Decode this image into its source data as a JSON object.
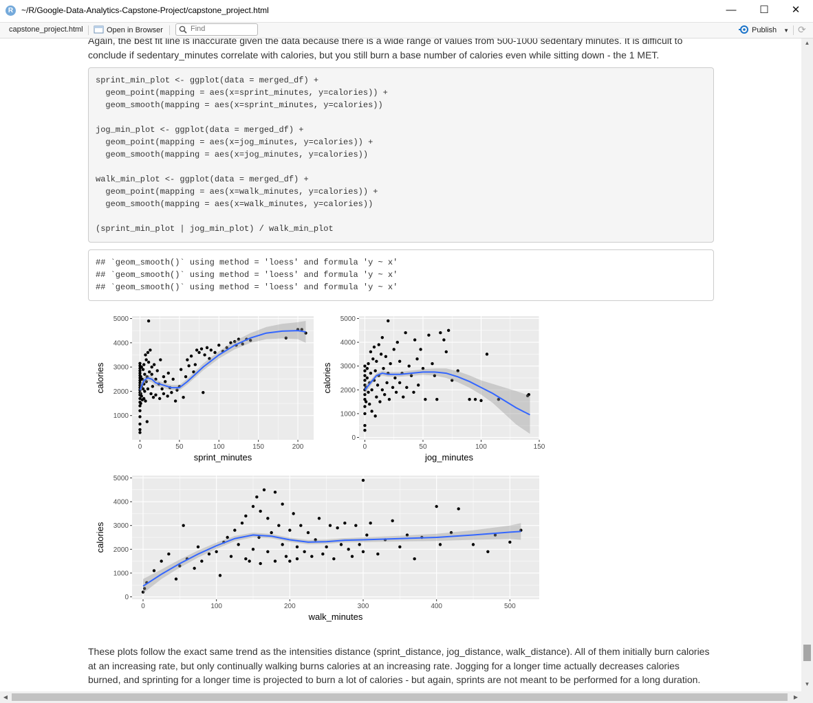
{
  "window": {
    "title": "~/R/Google-Data-Analytics-Capstone-Project/capstone_project.html",
    "app_icon_letter": "R",
    "minimize": "—",
    "maximize": "☐",
    "close": "✕"
  },
  "toolbar": {
    "tab_label": "capstone_project.html",
    "open_in_browser": "Open in Browser",
    "find_placeholder": "Find",
    "publish_label": "Publish"
  },
  "document": {
    "top_paragraph": [
      "Again, the best fit line is inaccurate given the data because there is a wide range of values from 500-1000 sedentary minutes. It is difficult to",
      "conclude if sedentary_minutes correlate with calories, but you still burn a base number of calories even while sitting down - the 1 MET."
    ],
    "code_lines": [
      "sprint_min_plot <- ggplot(data = merged_df) +",
      "  geom_point(mapping = aes(x=sprint_minutes, y=calories)) +",
      "  geom_smooth(mapping = aes(x=sprint_minutes, y=calories))",
      "",
      "jog_min_plot <- ggplot(data = merged_df) +",
      "  geom_point(mapping = aes(x=jog_minutes, y=calories)) +",
      "  geom_smooth(mapping = aes(x=jog_minutes, y=calories))",
      "",
      "walk_min_plot <- ggplot(data = merged_df) +",
      "  geom_point(mapping = aes(x=walk_minutes, y=calories)) +",
      "  geom_smooth(mapping = aes(x=walk_minutes, y=calories))",
      "",
      "(sprint_min_plot | jog_min_plot) / walk_min_plot"
    ],
    "output_lines": [
      "## `geom_smooth()` using method = 'loess' and formula 'y ~ x'",
      "## `geom_smooth()` using method = 'loess' and formula 'y ~ x'",
      "## `geom_smooth()` using method = 'loess' and formula 'y ~ x'"
    ],
    "bottom_paragraph": [
      "These plots follow the exact same trend as the intensities distance (sprint_distance, jog_distance, walk_distance). All of them initially burn calories",
      "at an increasing rate, but only continually walking burns calories at an increasing rate. Jogging for a longer time actually decreases calories",
      "burned, and sprinting for a longer time is projected to burn a lot of calories - but again, sprints are not meant to be performed for a long duration."
    ]
  },
  "colors": {
    "panel_bg": "#ebebeb",
    "grid": "#ffffff",
    "point": "#000000",
    "smooth_line": "#3366ff",
    "ribbon": "#999999",
    "publish_accent": "#1a73c9"
  },
  "chart_data": [
    {
      "type": "scatter",
      "xlabel": "sprint_minutes",
      "ylabel": "calories",
      "xlim": [
        -10,
        220
      ],
      "ylim": [
        0,
        5100
      ],
      "xticks": [
        0,
        50,
        100,
        150,
        200
      ],
      "yticks": [
        1000,
        2000,
        3000,
        4000,
        5000
      ],
      "smooth": {
        "x": [
          0,
          5,
          10,
          15,
          20,
          25,
          30,
          40,
          50,
          60,
          70,
          80,
          100,
          120,
          140,
          160,
          180,
          200,
          210
        ],
        "y": [
          2050,
          2450,
          2550,
          2500,
          2350,
          2300,
          2250,
          2150,
          2150,
          2400,
          2700,
          3000,
          3500,
          3900,
          4200,
          4400,
          4480,
          4500,
          4450
        ],
        "se": [
          250,
          150,
          120,
          130,
          130,
          120,
          110,
          110,
          110,
          120,
          130,
          140,
          150,
          170,
          200,
          250,
          300,
          350,
          450
        ]
      },
      "points": [
        [
          0,
          300
        ],
        [
          0,
          420
        ],
        [
          0,
          650
        ],
        [
          0,
          950
        ],
        [
          0,
          1200
        ],
        [
          0,
          1400
        ],
        [
          0,
          1550
        ],
        [
          0,
          1700
        ],
        [
          0,
          1850
        ],
        [
          0,
          1950
        ],
        [
          0,
          2050
        ],
        [
          0,
          2150
        ],
        [
          0,
          2250
        ],
        [
          0,
          2350
        ],
        [
          0,
          2450
        ],
        [
          0,
          2550
        ],
        [
          0,
          2650
        ],
        [
          0,
          2750
        ],
        [
          0,
          2850
        ],
        [
          0,
          2950
        ],
        [
          0,
          3050
        ],
        [
          0,
          3150
        ],
        [
          1,
          1500
        ],
        [
          1,
          1900
        ],
        [
          1,
          2600
        ],
        [
          2,
          1800
        ],
        [
          2,
          2200
        ],
        [
          2,
          3000
        ],
        [
          3,
          1650
        ],
        [
          3,
          2500
        ],
        [
          4,
          2100
        ],
        [
          4,
          2900
        ],
        [
          5,
          1700
        ],
        [
          5,
          2300
        ],
        [
          5,
          3100
        ],
        [
          6,
          2000
        ],
        [
          6,
          2700
        ],
        [
          7,
          1600
        ],
        [
          7,
          3500
        ],
        [
          8,
          2400
        ],
        [
          8,
          3300
        ],
        [
          9,
          750
        ],
        [
          9,
          2600
        ],
        [
          10,
          2100
        ],
        [
          10,
          3600
        ],
        [
          11,
          4900
        ],
        [
          11,
          3200
        ],
        [
          12,
          2800
        ],
        [
          13,
          3700
        ],
        [
          14,
          1900
        ],
        [
          15,
          2700
        ],
        [
          15,
          3000
        ],
        [
          16,
          2200
        ],
        [
          17,
          1750
        ],
        [
          18,
          3100
        ],
        [
          20,
          2500
        ],
        [
          20,
          1850
        ],
        [
          22,
          2850
        ],
        [
          24,
          2300
        ],
        [
          25,
          1700
        ],
        [
          26,
          3300
        ],
        [
          28,
          2100
        ],
        [
          30,
          2600
        ],
        [
          30,
          1900
        ],
        [
          32,
          2400
        ],
        [
          35,
          1800
        ],
        [
          36,
          2750
        ],
        [
          38,
          2150
        ],
        [
          40,
          1950
        ],
        [
          42,
          2500
        ],
        [
          45,
          1600
        ],
        [
          47,
          2050
        ],
        [
          50,
          2200
        ],
        [
          52,
          2900
        ],
        [
          55,
          1750
        ],
        [
          58,
          2600
        ],
        [
          60,
          3300
        ],
        [
          62,
          3050
        ],
        [
          65,
          3450
        ],
        [
          68,
          2800
        ],
        [
          70,
          3100
        ],
        [
          72,
          3700
        ],
        [
          75,
          3600
        ],
        [
          78,
          3750
        ],
        [
          80,
          1950
        ],
        [
          82,
          3500
        ],
        [
          85,
          3800
        ],
        [
          88,
          3350
        ],
        [
          90,
          3700
        ],
        [
          95,
          3600
        ],
        [
          100,
          3900
        ],
        [
          105,
          3650
        ],
        [
          110,
          3800
        ],
        [
          115,
          4000
        ],
        [
          120,
          4050
        ],
        [
          122,
          3900
        ],
        [
          125,
          4150
        ],
        [
          130,
          3950
        ],
        [
          135,
          4150
        ],
        [
          140,
          4100
        ],
        [
          185,
          4200
        ],
        [
          200,
          4550
        ],
        [
          205,
          4550
        ],
        [
          210,
          4400
        ]
      ]
    },
    {
      "type": "scatter",
      "xlabel": "jog_minutes",
      "ylabel": "calories",
      "xlim": [
        -5,
        150
      ],
      "ylim": [
        -100,
        5100
      ],
      "xticks": [
        0,
        50,
        100,
        150
      ],
      "yticks": [
        0,
        1000,
        2000,
        3000,
        4000,
        5000
      ],
      "smooth": {
        "x": [
          0,
          5,
          10,
          15,
          20,
          30,
          40,
          50,
          60,
          70,
          80,
          90,
          100,
          110,
          120,
          130,
          142
        ],
        "y": [
          2000,
          2300,
          2600,
          2700,
          2650,
          2650,
          2700,
          2750,
          2750,
          2700,
          2550,
          2350,
          2100,
          1850,
          1550,
          1250,
          950
        ],
        "se": [
          200,
          120,
          100,
          100,
          100,
          100,
          110,
          120,
          150,
          200,
          230,
          260,
          300,
          400,
          550,
          700,
          800
        ]
      },
      "points": [
        [
          0,
          300
        ],
        [
          0,
          500
        ],
        [
          0,
          1000
        ],
        [
          0,
          1300
        ],
        [
          0,
          1600
        ],
        [
          0,
          1800
        ],
        [
          0,
          2000
        ],
        [
          0,
          2200
        ],
        [
          0,
          2400
        ],
        [
          0,
          2600
        ],
        [
          0,
          2800
        ],
        [
          0,
          3000
        ],
        [
          1,
          1500
        ],
        [
          1,
          2100
        ],
        [
          2,
          2500
        ],
        [
          2,
          2900
        ],
        [
          3,
          1900
        ],
        [
          3,
          3100
        ],
        [
          4,
          1400
        ],
        [
          4,
          2300
        ],
        [
          5,
          2700
        ],
        [
          5,
          3600
        ],
        [
          6,
          1100
        ],
        [
          6,
          2000
        ],
        [
          7,
          3300
        ],
        [
          8,
          2400
        ],
        [
          8,
          3800
        ],
        [
          9,
          900
        ],
        [
          9,
          2800
        ],
        [
          10,
          1700
        ],
        [
          10,
          3200
        ],
        [
          11,
          2200
        ],
        [
          12,
          3900
        ],
        [
          12,
          2600
        ],
        [
          13,
          1500
        ],
        [
          14,
          3500
        ],
        [
          15,
          2000
        ],
        [
          15,
          4200
        ],
        [
          16,
          2900
        ],
        [
          17,
          1800
        ],
        [
          18,
          3400
        ],
        [
          19,
          2300
        ],
        [
          20,
          4900
        ],
        [
          20,
          2700
        ],
        [
          21,
          1600
        ],
        [
          22,
          3100
        ],
        [
          24,
          2100
        ],
        [
          25,
          3700
        ],
        [
          26,
          2500
        ],
        [
          27,
          1900
        ],
        [
          28,
          4000
        ],
        [
          30,
          2300
        ],
        [
          30,
          3200
        ],
        [
          32,
          2700
        ],
        [
          33,
          1700
        ],
        [
          35,
          4400
        ],
        [
          36,
          2100
        ],
        [
          38,
          3000
        ],
        [
          40,
          2600
        ],
        [
          42,
          1900
        ],
        [
          43,
          4100
        ],
        [
          45,
          3300
        ],
        [
          46,
          2200
        ],
        [
          48,
          3700
        ],
        [
          50,
          2900
        ],
        [
          52,
          1600
        ],
        [
          55,
          4300
        ],
        [
          58,
          3100
        ],
        [
          60,
          2600
        ],
        [
          62,
          1600
        ],
        [
          65,
          4400
        ],
        [
          68,
          4100
        ],
        [
          70,
          3600
        ],
        [
          72,
          4500
        ],
        [
          75,
          2400
        ],
        [
          80,
          2800
        ],
        [
          90,
          1600
        ],
        [
          95,
          1600
        ],
        [
          100,
          1550
        ],
        [
          105,
          3500
        ],
        [
          115,
          1600
        ],
        [
          140,
          1750
        ],
        [
          141,
          1800
        ]
      ]
    },
    {
      "type": "scatter",
      "xlabel": "walk_minutes",
      "ylabel": "calories",
      "xlim": [
        -15,
        540
      ],
      "ylim": [
        -100,
        5100
      ],
      "xticks": [
        0,
        100,
        200,
        300,
        400,
        500
      ],
      "yticks": [
        0,
        1000,
        2000,
        3000,
        4000,
        5000
      ],
      "smooth": {
        "x": [
          0,
          25,
          50,
          75,
          100,
          125,
          150,
          175,
          200,
          225,
          250,
          275,
          300,
          350,
          400,
          450,
          500,
          515
        ],
        "y": [
          450,
          950,
          1400,
          1800,
          2150,
          2450,
          2600,
          2550,
          2400,
          2300,
          2320,
          2380,
          2400,
          2450,
          2500,
          2600,
          2720,
          2750
        ],
        "se": [
          300,
          200,
          170,
          150,
          130,
          110,
          100,
          90,
          90,
          90,
          90,
          90,
          100,
          120,
          150,
          200,
          280,
          350
        ]
      },
      "points": [
        [
          0,
          200
        ],
        [
          2,
          350
        ],
        [
          5,
          600
        ],
        [
          15,
          1100
        ],
        [
          25,
          1500
        ],
        [
          35,
          1800
        ],
        [
          45,
          750
        ],
        [
          50,
          1300
        ],
        [
          55,
          3000
        ],
        [
          60,
          1600
        ],
        [
          70,
          1200
        ],
        [
          75,
          2100
        ],
        [
          80,
          1500
        ],
        [
          90,
          1800
        ],
        [
          100,
          1900
        ],
        [
          105,
          900
        ],
        [
          110,
          2300
        ],
        [
          115,
          2500
        ],
        [
          120,
          1700
        ],
        [
          125,
          2800
        ],
        [
          130,
          2200
        ],
        [
          135,
          3100
        ],
        [
          140,
          3400
        ],
        [
          140,
          1600
        ],
        [
          145,
          1500
        ],
        [
          150,
          2000
        ],
        [
          150,
          3800
        ],
        [
          155,
          4200
        ],
        [
          158,
          2500
        ],
        [
          160,
          1400
        ],
        [
          160,
          3600
        ],
        [
          165,
          4500
        ],
        [
          170,
          1900
        ],
        [
          170,
          3300
        ],
        [
          175,
          2700
        ],
        [
          180,
          1500
        ],
        [
          180,
          4400
        ],
        [
          185,
          3000
        ],
        [
          190,
          2200
        ],
        [
          190,
          3900
        ],
        [
          195,
          1700
        ],
        [
          200,
          2800
        ],
        [
          200,
          1500
        ],
        [
          205,
          3500
        ],
        [
          210,
          2100
        ],
        [
          210,
          1600
        ],
        [
          215,
          3000
        ],
        [
          220,
          1900
        ],
        [
          225,
          2700
        ],
        [
          230,
          1700
        ],
        [
          235,
          2400
        ],
        [
          240,
          3300
        ],
        [
          245,
          1800
        ],
        [
          250,
          2100
        ],
        [
          255,
          3000
        ],
        [
          260,
          1600
        ],
        [
          265,
          2900
        ],
        [
          270,
          2200
        ],
        [
          275,
          3100
        ],
        [
          280,
          2000
        ],
        [
          285,
          1700
        ],
        [
          290,
          3000
        ],
        [
          295,
          2200
        ],
        [
          300,
          4900
        ],
        [
          300,
          1900
        ],
        [
          305,
          2600
        ],
        [
          310,
          3100
        ],
        [
          320,
          1800
        ],
        [
          330,
          2400
        ],
        [
          340,
          3200
        ],
        [
          350,
          2100
        ],
        [
          360,
          2600
        ],
        [
          370,
          1600
        ],
        [
          380,
          2500
        ],
        [
          400,
          3800
        ],
        [
          405,
          2200
        ],
        [
          420,
          2700
        ],
        [
          430,
          3700
        ],
        [
          450,
          2200
        ],
        [
          470,
          1900
        ],
        [
          480,
          2600
        ],
        [
          500,
          2300
        ],
        [
          515,
          2800
        ]
      ]
    }
  ]
}
